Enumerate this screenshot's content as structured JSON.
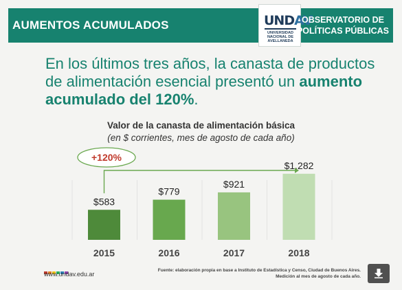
{
  "header": {
    "title": "AUMENTOS ACUMULADOS",
    "logo": {
      "mark_left": "UND",
      "mark_right": "AV",
      "sub": "UNIVERSIDAD NACIONAL DE AVELLANEDA"
    },
    "observatory_line1": "OBSERVATORIO DE",
    "observatory_line2": "POLÍTICAS PÚBLICAS"
  },
  "headline": {
    "part1": "En los últimos tres años, la canasta de productos de alimentación esencial presentó un ",
    "bold": "aumento acumulado del 120%",
    "part2": "."
  },
  "chart_data": {
    "type": "bar",
    "title": "Valor de la canasta de alimentación básica",
    "subtitle": "(en $ corrientes, mes de agosto de cada año)",
    "categories": [
      "2015",
      "2016",
      "2017",
      "2018"
    ],
    "values": [
      583,
      779,
      921,
      1282
    ],
    "value_labels": [
      "$583",
      "$779",
      "$921",
      "$1.282"
    ],
    "colors": [
      "#4e8a3a",
      "#68a84e",
      "#98c47f",
      "#c0ddb2"
    ],
    "annotation": "+120%",
    "ylim": [
      0,
      1400
    ],
    "grid": false
  },
  "footer": {
    "url": "www.undav.edu.ar",
    "dot_colors": [
      "#c0392b",
      "#e67e22",
      "#f1c40f",
      "#27ae60",
      "#2980b9",
      "#8e44ad"
    ],
    "source_line1": "Fuente: elaboración propia en base a Instituto de Estadística y Censo, Ciudad de Buenos Aires.",
    "source_line2": "Medición al mes de agosto de cada año.",
    "download_icon": "download-arrow-icon"
  }
}
